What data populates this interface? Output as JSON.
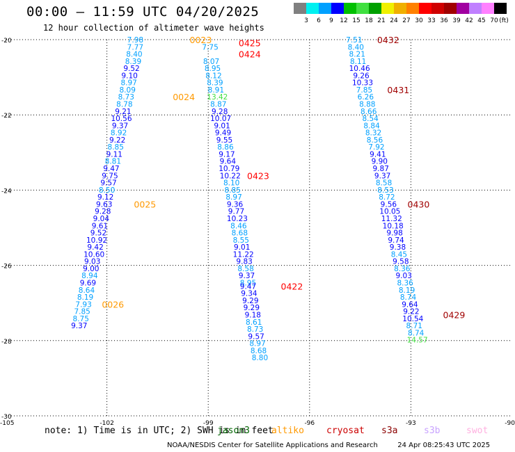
{
  "header": {
    "title": "00:00 — 11:59 UTC 04/20/2025",
    "subtitle": "12 hour collection of altimeter wave heights"
  },
  "colorbar": {
    "colors": [
      "#808080",
      "#00f0f0",
      "#00a0ff",
      "#0000ff",
      "#00c000",
      "#40e040",
      "#00a000",
      "#f0f000",
      "#f0b000",
      "#ff8000",
      "#ff0000",
      "#d00000",
      "#a00000",
      "#a000a0",
      "#c080ff",
      "#ff80ff",
      "#000000"
    ],
    "labels": [
      "3",
      "6",
      "9",
      "12",
      "15",
      "18",
      "21",
      "24",
      "27",
      "30",
      "33",
      "36",
      "39",
      "42",
      "45",
      "70"
    ],
    "unit": "(ft)"
  },
  "notes": {
    "note_text": "note: 1) Time is in UTC; 2) SWH is in feet",
    "satellites": [
      {
        "name": "jason3",
        "color": "#006400"
      },
      {
        "name": "altiko",
        "color": "#ff9900"
      },
      {
        "name": "cryosat",
        "color": "#cc0000"
      },
      {
        "name": "s3a",
        "color": "#8b0000"
      },
      {
        "name": "s3b",
        "color": "#c8a2ff"
      },
      {
        "name": "swot",
        "color": "#ffb0e0"
      }
    ]
  },
  "footer": {
    "credit": "NOAA/NESDIS Center for Satellite Applications and Research",
    "timestamp": "24 Apr 08:25:43 UTC 2025"
  },
  "chart_data": {
    "type": "scatter",
    "title": "00:00 — 11:59 UTC 04/20/2025",
    "xlim": [
      -105,
      -90
    ],
    "ylim": [
      -30,
      -20
    ],
    "xticks": [
      "-105",
      "-102",
      "-99",
      "-96",
      "-93",
      "-90"
    ],
    "yticks": [
      "-20",
      "-22",
      "-24",
      "-26",
      "-28",
      "-30"
    ],
    "grid": true,
    "track1": [
      {
        "x": -101.16,
        "y": -20.0,
        "v": "7.98"
      },
      {
        "x": -101.16,
        "y": -20.19,
        "v": "7.77"
      },
      {
        "x": -101.19,
        "y": -20.38,
        "v": "8.40"
      },
      {
        "x": -101.22,
        "y": -20.57,
        "v": "8.39"
      },
      {
        "x": -101.27,
        "y": -20.76,
        "v": "9.52"
      },
      {
        "x": -101.33,
        "y": -20.95,
        "v": "9.10"
      },
      {
        "x": -101.35,
        "y": -21.14,
        "v": "8.97"
      },
      {
        "x": -101.39,
        "y": -21.33,
        "v": "8.09"
      },
      {
        "x": -101.43,
        "y": -21.52,
        "v": "8.73"
      },
      {
        "x": -101.48,
        "y": -21.71,
        "v": "8.78"
      },
      {
        "x": -101.52,
        "y": -21.9,
        "v": "9.21"
      },
      {
        "x": -101.57,
        "y": -22.09,
        "v": "10.56"
      },
      {
        "x": -101.61,
        "y": -22.28,
        "v": "9.37"
      },
      {
        "x": -101.65,
        "y": -22.47,
        "v": "8.92"
      },
      {
        "x": -101.69,
        "y": -22.66,
        "v": "9.22"
      },
      {
        "x": -101.74,
        "y": -22.85,
        "v": "8.85"
      },
      {
        "x": -101.78,
        "y": -23.04,
        "v": "9.11"
      },
      {
        "x": -101.82,
        "y": -23.23,
        "v": "8.81"
      },
      {
        "x": -101.87,
        "y": -23.42,
        "v": "9.47"
      },
      {
        "x": -101.91,
        "y": -23.61,
        "v": "9.75"
      },
      {
        "x": -101.95,
        "y": -23.8,
        "v": "9.57"
      },
      {
        "x": -102.0,
        "y": -23.99,
        "v": "8.50"
      },
      {
        "x": -102.04,
        "y": -24.18,
        "v": "9.12"
      },
      {
        "x": -102.08,
        "y": -24.37,
        "v": "9.63"
      },
      {
        "x": -102.12,
        "y": -24.56,
        "v": "9.28"
      },
      {
        "x": -102.17,
        "y": -24.75,
        "v": "9.04"
      },
      {
        "x": -102.21,
        "y": -24.94,
        "v": "9.61"
      },
      {
        "x": -102.25,
        "y": -25.13,
        "v": "9.52"
      },
      {
        "x": -102.3,
        "y": -25.32,
        "v": "10.92"
      },
      {
        "x": -102.34,
        "y": -25.51,
        "v": "9.42"
      },
      {
        "x": -102.38,
        "y": -25.7,
        "v": "10.60"
      },
      {
        "x": -102.43,
        "y": -25.89,
        "v": "9.03"
      },
      {
        "x": -102.47,
        "y": -26.08,
        "v": "9.00"
      },
      {
        "x": -102.51,
        "y": -26.27,
        "v": "8.94"
      },
      {
        "x": -102.56,
        "y": -26.46,
        "v": "9.69"
      },
      {
        "x": -102.6,
        "y": -26.65,
        "v": "8.64"
      },
      {
        "x": -102.64,
        "y": -26.84,
        "v": "8.19"
      },
      {
        "x": -102.69,
        "y": -27.03,
        "v": "7.93"
      },
      {
        "x": -102.73,
        "y": -27.22,
        "v": "7.85"
      },
      {
        "x": -102.77,
        "y": -27.41,
        "v": "8.75"
      },
      {
        "x": -102.82,
        "y": -27.6,
        "v": "9.37"
      }
    ],
    "track2": [
      {
        "x": -98.94,
        "y": -20.19,
        "v": "7.75"
      },
      {
        "x": -98.91,
        "y": -20.57,
        "v": "8.07"
      },
      {
        "x": -98.87,
        "y": -20.76,
        "v": "8.95"
      },
      {
        "x": -98.84,
        "y": -20.95,
        "v": "8.12"
      },
      {
        "x": -98.8,
        "y": -21.14,
        "v": "8.39"
      },
      {
        "x": -98.77,
        "y": -21.33,
        "v": "8.91"
      },
      {
        "x": -98.73,
        "y": -21.52,
        "v": "13.42"
      },
      {
        "x": -98.7,
        "y": -21.71,
        "v": "8.87"
      },
      {
        "x": -98.66,
        "y": -21.9,
        "v": "9.28"
      },
      {
        "x": -98.63,
        "y": -22.09,
        "v": "10.07"
      },
      {
        "x": -98.59,
        "y": -22.28,
        "v": "9.01"
      },
      {
        "x": -98.56,
        "y": -22.47,
        "v": "9.49"
      },
      {
        "x": -98.52,
        "y": -22.66,
        "v": "9.55"
      },
      {
        "x": -98.49,
        "y": -22.85,
        "v": "8.86"
      },
      {
        "x": -98.45,
        "y": -23.04,
        "v": "9.17"
      },
      {
        "x": -98.42,
        "y": -23.23,
        "v": "9.64"
      },
      {
        "x": -98.38,
        "y": -23.42,
        "v": "10.79"
      },
      {
        "x": -98.35,
        "y": -23.61,
        "v": "10.22"
      },
      {
        "x": -98.31,
        "y": -23.8,
        "v": "8.10"
      },
      {
        "x": -98.28,
        "y": -23.99,
        "v": "8.85"
      },
      {
        "x": -98.24,
        "y": -24.18,
        "v": "8.97"
      },
      {
        "x": -98.21,
        "y": -24.37,
        "v": "9.36"
      },
      {
        "x": -98.17,
        "y": -24.56,
        "v": "9.77"
      },
      {
        "x": -98.14,
        "y": -24.75,
        "v": "10.23"
      },
      {
        "x": -98.1,
        "y": -24.94,
        "v": "8.46"
      },
      {
        "x": -98.07,
        "y": -25.13,
        "v": "8.68"
      },
      {
        "x": -98.03,
        "y": -25.32,
        "v": "8.55"
      },
      {
        "x": -98.0,
        "y": -25.51,
        "v": "9.01"
      },
      {
        "x": -97.96,
        "y": -25.7,
        "v": "11.22"
      },
      {
        "x": -97.93,
        "y": -25.89,
        "v": "9.83"
      },
      {
        "x": -97.89,
        "y": -26.08,
        "v": "8.58"
      },
      {
        "x": -97.86,
        "y": -26.27,
        "v": "9.37"
      },
      {
        "x": -97.82,
        "y": -26.46,
        "v": "8.95"
      },
      {
        "x": -97.82,
        "y": -26.55,
        "v": "9.47"
      },
      {
        "x": -97.79,
        "y": -26.74,
        "v": "9.34"
      },
      {
        "x": -97.75,
        "y": -26.93,
        "v": "9.29"
      },
      {
        "x": -97.72,
        "y": -27.12,
        "v": "9.29"
      },
      {
        "x": -97.68,
        "y": -27.31,
        "v": "9.18"
      },
      {
        "x": -97.65,
        "y": -27.5,
        "v": "8.61"
      },
      {
        "x": -97.61,
        "y": -27.69,
        "v": "8.73"
      },
      {
        "x": -97.58,
        "y": -27.88,
        "v": "9.57"
      },
      {
        "x": -97.54,
        "y": -28.07,
        "v": "8.97"
      },
      {
        "x": -97.51,
        "y": -28.26,
        "v": "8.68"
      },
      {
        "x": -97.47,
        "y": -28.45,
        "v": "8.80"
      }
    ],
    "track3": [
      {
        "x": -94.68,
        "y": -20.0,
        "v": "7.51"
      },
      {
        "x": -94.63,
        "y": -20.19,
        "v": "8.40"
      },
      {
        "x": -94.59,
        "y": -20.38,
        "v": "8.21"
      },
      {
        "x": -94.56,
        "y": -20.57,
        "v": "8.11"
      },
      {
        "x": -94.52,
        "y": -20.76,
        "v": "10.46"
      },
      {
        "x": -94.47,
        "y": -20.95,
        "v": "9.26"
      },
      {
        "x": -94.43,
        "y": -21.14,
        "v": "10.33"
      },
      {
        "x": -94.38,
        "y": -21.33,
        "v": "7.85"
      },
      {
        "x": -94.34,
        "y": -21.52,
        "v": "6.26"
      },
      {
        "x": -94.29,
        "y": -21.71,
        "v": "8.88"
      },
      {
        "x": -94.25,
        "y": -21.9,
        "v": "8.66"
      },
      {
        "x": -94.2,
        "y": -22.09,
        "v": "8.54"
      },
      {
        "x": -94.16,
        "y": -22.28,
        "v": "8.84"
      },
      {
        "x": -94.11,
        "y": -22.47,
        "v": "8.32"
      },
      {
        "x": -94.07,
        "y": -22.66,
        "v": "8.56"
      },
      {
        "x": -94.02,
        "y": -22.85,
        "v": "7.92"
      },
      {
        "x": -93.98,
        "y": -23.04,
        "v": "9.41"
      },
      {
        "x": -93.93,
        "y": -23.23,
        "v": "9.90"
      },
      {
        "x": -93.89,
        "y": -23.42,
        "v": "9.87"
      },
      {
        "x": -93.84,
        "y": -23.61,
        "v": "9.37"
      },
      {
        "x": -93.8,
        "y": -23.8,
        "v": "8.58"
      },
      {
        "x": -93.75,
        "y": -23.99,
        "v": "8.53"
      },
      {
        "x": -93.71,
        "y": -24.18,
        "v": "8.72"
      },
      {
        "x": -93.66,
        "y": -24.37,
        "v": "9.56"
      },
      {
        "x": -93.62,
        "y": -24.56,
        "v": "10.05"
      },
      {
        "x": -93.57,
        "y": -24.75,
        "v": "11.32"
      },
      {
        "x": -93.53,
        "y": -24.94,
        "v": "10.18"
      },
      {
        "x": -93.48,
        "y": -25.13,
        "v": "9.98"
      },
      {
        "x": -93.44,
        "y": -25.32,
        "v": "9.74"
      },
      {
        "x": -93.39,
        "y": -25.51,
        "v": "9.38"
      },
      {
        "x": -93.35,
        "y": -25.7,
        "v": "8.45"
      },
      {
        "x": -93.3,
        "y": -25.89,
        "v": "9.58"
      },
      {
        "x": -93.26,
        "y": -26.08,
        "v": "8.36"
      },
      {
        "x": -93.21,
        "y": -26.27,
        "v": "9.03"
      },
      {
        "x": -93.17,
        "y": -26.46,
        "v": "8.36"
      },
      {
        "x": -93.12,
        "y": -26.65,
        "v": "8.19"
      },
      {
        "x": -93.08,
        "y": -26.84,
        "v": "8.74"
      },
      {
        "x": -93.03,
        "y": -27.03,
        "v": "9.64"
      },
      {
        "x": -92.99,
        "y": -27.22,
        "v": "9.22"
      },
      {
        "x": -92.94,
        "y": -27.41,
        "v": "10.54"
      },
      {
        "x": -92.9,
        "y": -27.6,
        "v": "8.71"
      },
      {
        "x": -92.85,
        "y": -27.79,
        "v": "8.74"
      },
      {
        "x": -92.81,
        "y": -27.98,
        "v": "14.57"
      }
    ],
    "time_labels": [
      {
        "x": -99.55,
        "y": -20.0,
        "t": "0023",
        "color": "#ff9900"
      },
      {
        "x": -98.1,
        "y": -20.08,
        "t": "0425",
        "color": "#ff0000"
      },
      {
        "x": -98.1,
        "y": -20.38,
        "t": "0424",
        "color": "#ff0000"
      },
      {
        "x": -100.05,
        "y": -21.52,
        "t": "0024",
        "color": "#ff9900"
      },
      {
        "x": -97.85,
        "y": -23.61,
        "t": "0423",
        "color": "#ff0000"
      },
      {
        "x": -101.2,
        "y": -24.37,
        "t": "0025",
        "color": "#ff9900"
      },
      {
        "x": -96.85,
        "y": -26.55,
        "t": "0422",
        "color": "#ff0000"
      },
      {
        "x": -102.15,
        "y": -27.03,
        "t": "0026",
        "color": "#ff9900"
      },
      {
        "x": -94.0,
        "y": -20.0,
        "t": "0432",
        "color": "#a00000"
      },
      {
        "x": -93.7,
        "y": -21.33,
        "t": "0431",
        "color": "#a00000"
      },
      {
        "x": -93.1,
        "y": -24.37,
        "t": "0430",
        "color": "#a00000"
      },
      {
        "x": -92.05,
        "y": -27.31,
        "t": "0429",
        "color": "#a00000"
      }
    ]
  }
}
